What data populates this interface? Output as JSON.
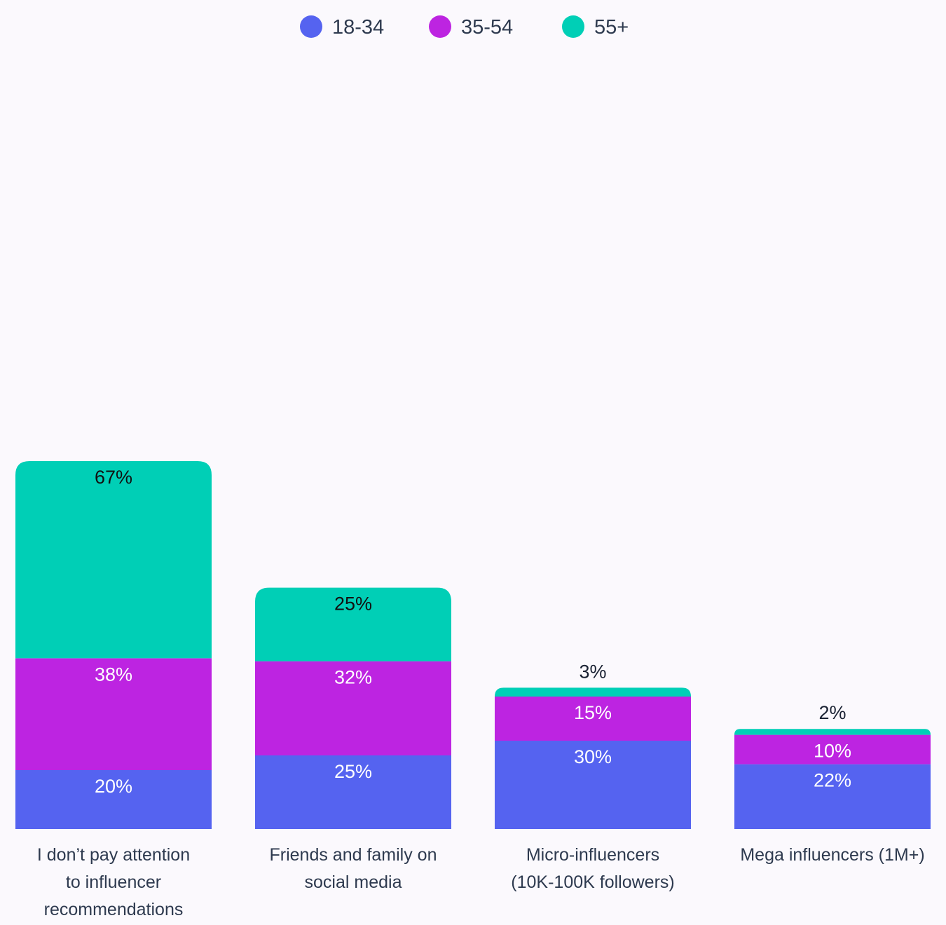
{
  "chart_data": {
    "type": "bar",
    "stacked": true,
    "categories": [
      [
        "I don’t pay attention",
        "to influencer",
        "recommendations"
      ],
      [
        "Friends and family on",
        "social media"
      ],
      [
        "Micro-influencers",
        "(10K-100K followers)"
      ],
      [
        "Mega influencers (1M+)"
      ]
    ],
    "series": [
      {
        "name": "18-34",
        "color": "#5563f0",
        "values": [
          20,
          25,
          30,
          22
        ],
        "labels": [
          "20%",
          "25%",
          "30%",
          "22%"
        ]
      },
      {
        "name": "35-54",
        "color": "#bd24e1",
        "values": [
          38,
          32,
          15,
          10
        ],
        "labels": [
          "38%",
          "32%",
          "15%",
          "10%"
        ]
      },
      {
        "name": "55+",
        "color": "#00cfb6",
        "values": [
          67,
          25,
          3,
          2
        ],
        "labels": [
          "67%",
          "25%",
          "3%",
          "2%"
        ]
      }
    ],
    "legend_position": "top-center",
    "grid": false
  }
}
